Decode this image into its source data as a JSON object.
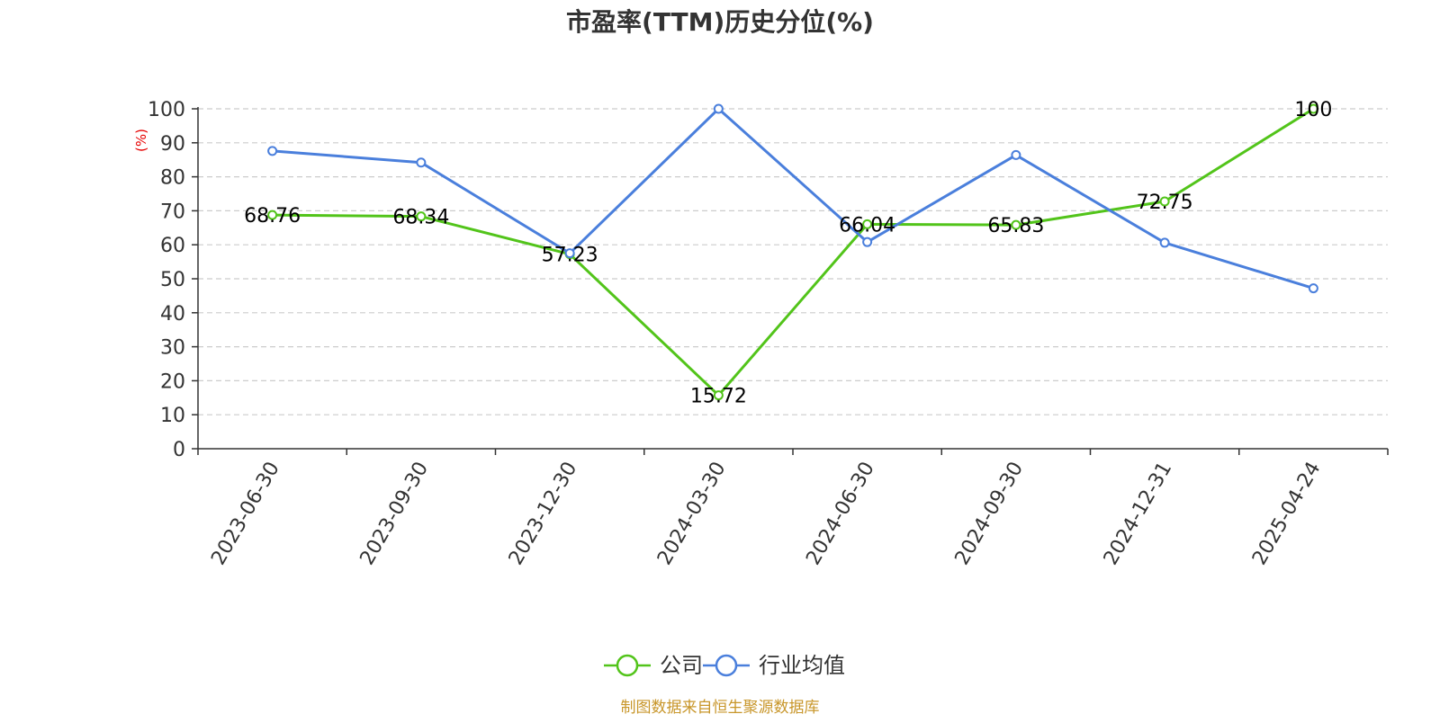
{
  "chart_data": {
    "type": "line",
    "title": "市盈率(TTM)历史分位(%)",
    "ylabel": "(%)",
    "xlabel": "",
    "ylim": [
      0,
      100
    ],
    "yticks": [
      0,
      10,
      20,
      30,
      40,
      50,
      60,
      70,
      80,
      90,
      100
    ],
    "categories": [
      "2023-06-30",
      "2023-09-30",
      "2023-12-30",
      "2024-03-30",
      "2024-06-30",
      "2024-09-30",
      "2024-12-31",
      "2025-04-24"
    ],
    "series": [
      {
        "name": "公司",
        "color": "#52c41a",
        "values": [
          68.76,
          68.34,
          57.23,
          15.72,
          66.04,
          65.83,
          72.75,
          100
        ],
        "data_labels": [
          "68.76",
          "68.34",
          "57.23",
          "15.72",
          "66.04",
          "65.83",
          "72.75",
          "100"
        ]
      },
      {
        "name": "行业均值",
        "color": "#4a7fdc",
        "values": [
          87.6,
          84.2,
          57.5,
          100,
          60.8,
          86.4,
          60.6,
          47.2
        ]
      }
    ],
    "grid": true,
    "grid_style": "dashed",
    "legend_position": "bottom-center",
    "source_note": "制图数据来自恒生聚源数据库",
    "ylabel_color": "#e60000",
    "source_note_color": "#c8962a"
  }
}
